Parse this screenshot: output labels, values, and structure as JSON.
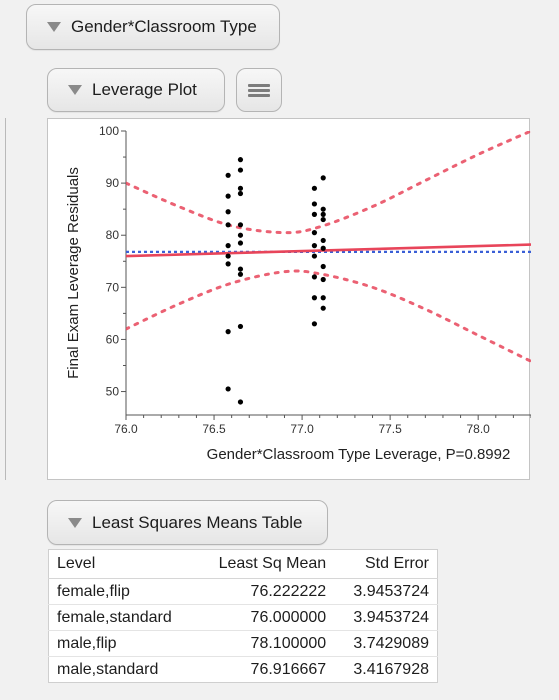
{
  "sections": {
    "gender_classroom": "Gender*Classroom Type",
    "leverage_plot": "Leverage Plot",
    "least_squares": "Least Squares Means Table"
  },
  "colors": {
    "fit_line": "#e8455a",
    "confidence_curves": "#e8455a",
    "mean_line": "#3a5fd6",
    "points": "#000000"
  },
  "chart_data": {
    "type": "scatter",
    "title": "",
    "xlabel": "Gender*Classroom Type Leverage, P=0.8992",
    "ylabel": "Final Exam Leverage Residuals",
    "xlim": [
      76.0,
      78.3
    ],
    "ylim": [
      45.5,
      100
    ],
    "x_ticks": [
      76.0,
      76.5,
      77.0,
      77.5,
      78.0
    ],
    "x_tick_labels": [
      "76.0",
      "76.5",
      "77.0",
      "77.5",
      "78.0"
    ],
    "y_ticks": [
      50,
      60,
      70,
      80,
      90,
      100
    ],
    "y_tick_labels": [
      "50",
      "60",
      "70",
      "80",
      "90",
      "100"
    ],
    "grid": false,
    "mean_line_y": 76.8,
    "fit_line": {
      "x": [
        76.0,
        78.3
      ],
      "y": [
        76.0,
        78.2
      ]
    },
    "confidence_upper": {
      "x": [
        76.0,
        76.3,
        76.6,
        76.9,
        77.1,
        77.4,
        77.7,
        78.0,
        78.3
      ],
      "y": [
        90.0,
        85.5,
        81.8,
        80.5,
        81.6,
        85.5,
        90.5,
        95.5,
        100.0
      ]
    },
    "confidence_lower": {
      "x": [
        76.0,
        76.3,
        76.6,
        76.9,
        77.1,
        77.4,
        77.7,
        78.0,
        78.3
      ],
      "y": [
        62.0,
        66.8,
        70.8,
        73.0,
        72.6,
        70.0,
        65.8,
        60.8,
        55.8
      ]
    },
    "points": [
      {
        "x": 76.58,
        "y": 91.5
      },
      {
        "x": 76.58,
        "y": 87.5
      },
      {
        "x": 76.58,
        "y": 84.5
      },
      {
        "x": 76.58,
        "y": 82.0
      },
      {
        "x": 76.58,
        "y": 78.0
      },
      {
        "x": 76.58,
        "y": 76.0
      },
      {
        "x": 76.58,
        "y": 74.5
      },
      {
        "x": 76.58,
        "y": 61.5
      },
      {
        "x": 76.58,
        "y": 50.5
      },
      {
        "x": 76.65,
        "y": 94.5
      },
      {
        "x": 76.65,
        "y": 92.5
      },
      {
        "x": 76.65,
        "y": 89.0
      },
      {
        "x": 76.65,
        "y": 88.0
      },
      {
        "x": 76.65,
        "y": 82.0
      },
      {
        "x": 76.65,
        "y": 80.0
      },
      {
        "x": 76.65,
        "y": 78.5
      },
      {
        "x": 76.65,
        "y": 73.5
      },
      {
        "x": 76.65,
        "y": 72.5
      },
      {
        "x": 76.65,
        "y": 62.5
      },
      {
        "x": 76.65,
        "y": 48.0
      },
      {
        "x": 77.07,
        "y": 89.0
      },
      {
        "x": 77.07,
        "y": 86.0
      },
      {
        "x": 77.07,
        "y": 84.0
      },
      {
        "x": 77.07,
        "y": 80.5
      },
      {
        "x": 77.07,
        "y": 78.0
      },
      {
        "x": 77.07,
        "y": 76.0
      },
      {
        "x": 77.07,
        "y": 72.0
      },
      {
        "x": 77.07,
        "y": 68.0
      },
      {
        "x": 77.07,
        "y": 63.0
      },
      {
        "x": 77.12,
        "y": 91.0
      },
      {
        "x": 77.12,
        "y": 85.0
      },
      {
        "x": 77.12,
        "y": 84.0
      },
      {
        "x": 77.12,
        "y": 83.0
      },
      {
        "x": 77.12,
        "y": 79.0
      },
      {
        "x": 77.12,
        "y": 77.5
      },
      {
        "x": 77.12,
        "y": 74.0
      },
      {
        "x": 77.12,
        "y": 71.5
      },
      {
        "x": 77.12,
        "y": 68.0
      },
      {
        "x": 77.12,
        "y": 66.0
      }
    ]
  },
  "lsm_table": {
    "headers": [
      "Level",
      "Least Sq Mean",
      "Std Error"
    ],
    "rows": [
      [
        "female,flip",
        "76.222222",
        "3.9453724"
      ],
      [
        "female,standard",
        "76.000000",
        "3.9453724"
      ],
      [
        "male,flip",
        "78.100000",
        "3.7429089"
      ],
      [
        "male,standard",
        "76.916667",
        "3.4167928"
      ]
    ]
  }
}
